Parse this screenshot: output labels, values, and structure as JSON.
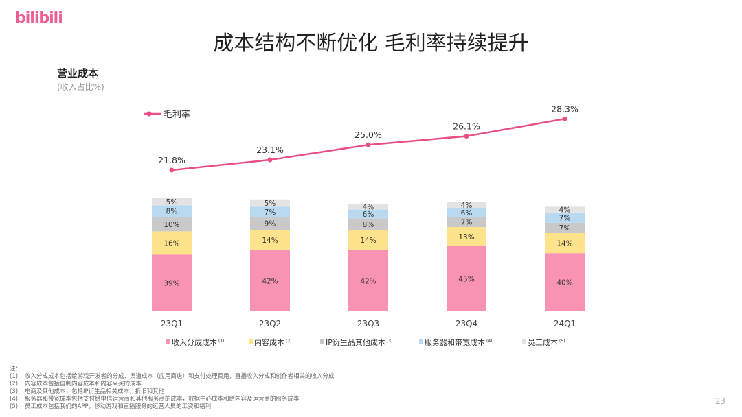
{
  "brand": {
    "logo_text": "bilibili",
    "accent": "#e94f84"
  },
  "header": {
    "title": "成本结构不断优化 毛利率持续提升"
  },
  "section": {
    "title": "营业成本",
    "subtitle": "(收入占比%)"
  },
  "chart_data": {
    "type": "bar",
    "stacked": true,
    "categories": [
      "23Q1",
      "23Q2",
      "23Q3",
      "23Q4",
      "24Q1"
    ],
    "series": [
      {
        "name": "收入分成成本",
        "sup": "(1)",
        "color": "#f893b3",
        "values": [
          39,
          42,
          42,
          45,
          40
        ],
        "labels": [
          "39%",
          "42%",
          "42%",
          "45%",
          "40%"
        ]
      },
      {
        "name": "内容成本",
        "sup": "(2)",
        "color": "#fde38b",
        "values": [
          16,
          14,
          14,
          13,
          14
        ],
        "labels": [
          "16%",
          "14%",
          "14%",
          "13%",
          "14%"
        ]
      },
      {
        "name": "IP衍生品其他成本",
        "sup": "(3)",
        "color": "#c9c9c9",
        "values": [
          10,
          9,
          8,
          7,
          7
        ],
        "labels": [
          "10%",
          "9%",
          "8%",
          "7%",
          "7%"
        ]
      },
      {
        "name": "服务器和带宽成本",
        "sup": "(4)",
        "color": "#b9d9f1",
        "values": [
          8,
          7,
          6,
          6,
          7
        ],
        "labels": [
          "8%",
          "7%",
          "6%",
          "6%",
          "7%"
        ]
      },
      {
        "name": "员工成本",
        "sup": "(5)",
        "color": "#e3e3e3",
        "values": [
          5,
          5,
          4,
          4,
          4
        ],
        "labels": [
          "5%",
          "5%",
          "4%",
          "4%",
          "4%"
        ]
      }
    ],
    "line": {
      "name": "毛利率",
      "color": "#e94f84",
      "values": [
        21.8,
        23.1,
        25.0,
        26.1,
        28.3
      ],
      "labels": [
        "21.8%",
        "23.1%",
        "25.0%",
        "26.1%",
        "28.3%"
      ]
    }
  },
  "notes": {
    "title": "注：",
    "items": [
      {
        "num": "(1)",
        "text": "收入分成成本包括给游戏开发者的分成、渠道成本（应用商店）和支付处理费用，直播收入分成和创作者相关的收入分成"
      },
      {
        "num": "(2)",
        "text": "内容成本包括自制内容成本和内容采买的成本"
      },
      {
        "num": "(3)",
        "text": "电商及其他成本，包括IP衍生品相关成本，折旧和其他"
      },
      {
        "num": "(4)",
        "text": "服务器和带宽成本包括支付给电信运营商和其他服务商的成本，数据中心成本和给内容及运营商的服务成本"
      },
      {
        "num": "(5)",
        "text": "员工成本包括我们的APP，移动游戏和直播服务的运营人员的工资和福利"
      }
    ]
  },
  "footer": {
    "page_number": "23"
  }
}
